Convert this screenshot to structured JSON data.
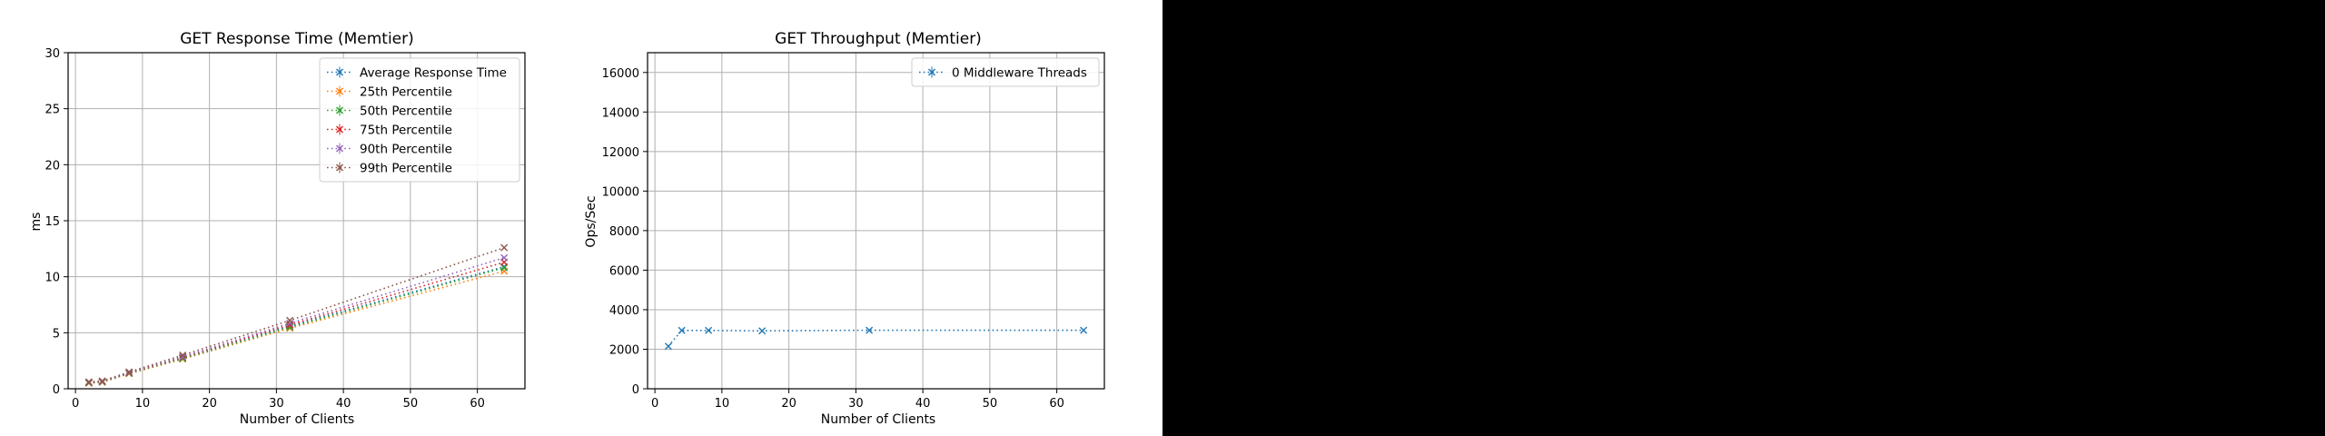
{
  "chart_data": [
    {
      "type": "line",
      "title": "GET Response Time (Memtier)",
      "xlabel": "Number of Clients",
      "ylabel": "ms",
      "xlim": [
        -1.1,
        67.1
      ],
      "ylim": [
        0,
        30
      ],
      "xticks": [
        0,
        10,
        20,
        30,
        40,
        50,
        60
      ],
      "yticks": [
        0,
        5,
        10,
        15,
        20,
        25,
        30
      ],
      "grid": true,
      "legend": "top-right",
      "line_style": "dotted",
      "marker": "x",
      "x": [
        2,
        4,
        8,
        16,
        32,
        64
      ],
      "series": [
        {
          "name": "Average Response Time",
          "color": "#1f77b4",
          "values": [
            0.55,
            0.62,
            1.4,
            2.75,
            5.6,
            10.9
          ]
        },
        {
          "name": "25th Percentile",
          "color": "#ff7f0e",
          "values": [
            0.5,
            0.58,
            1.35,
            2.65,
            5.4,
            10.5
          ]
        },
        {
          "name": "50th Percentile",
          "color": "#2ca02c",
          "values": [
            0.52,
            0.6,
            1.38,
            2.7,
            5.5,
            10.8
          ]
        },
        {
          "name": "75th Percentile",
          "color": "#d62728",
          "values": [
            0.56,
            0.64,
            1.42,
            2.8,
            5.7,
            11.3
          ]
        },
        {
          "name": "90th Percentile",
          "color": "#9467bd",
          "values": [
            0.58,
            0.66,
            1.45,
            2.85,
            5.85,
            11.7
          ]
        },
        {
          "name": "99th Percentile",
          "color": "#8c564b",
          "values": [
            0.62,
            0.7,
            1.5,
            3.0,
            6.1,
            12.6
          ]
        }
      ]
    },
    {
      "type": "line",
      "title": "GET Throughput (Memtier)",
      "xlabel": "Number of Clients",
      "ylabel": "Ops/Sec",
      "xlim": [
        -1.1,
        67.1
      ],
      "ylim": [
        0,
        17000
      ],
      "xticks": [
        0,
        10,
        20,
        30,
        40,
        50,
        60
      ],
      "yticks": [
        0,
        2000,
        4000,
        6000,
        8000,
        10000,
        12000,
        14000,
        16000
      ],
      "grid": true,
      "legend": "top-right",
      "line_style": "dotted",
      "marker": "x",
      "x": [
        2,
        4,
        8,
        16,
        32,
        64
      ],
      "series": [
        {
          "name": "0 Middleware Threads",
          "color": "#1f77b4",
          "values": [
            2150,
            2950,
            2950,
            2930,
            2960,
            2960
          ]
        }
      ]
    }
  ]
}
